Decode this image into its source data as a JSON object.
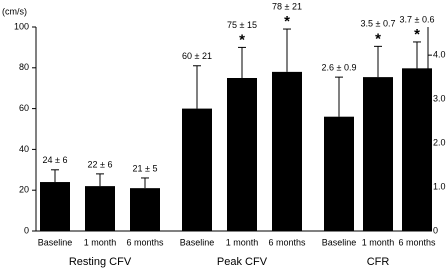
{
  "chart_data": {
    "type": "bar",
    "y_label": "(cm/s)",
    "color": "#000000",
    "ylim": [
      0,
      100
    ],
    "yticks": [
      0,
      20,
      40,
      60,
      80,
      100
    ],
    "y2lim": [
      0,
      4.64
    ],
    "y2ticks": [
      0,
      {
        "value": 1,
        "label": "1.0"
      },
      {
        "value": 2,
        "label": "2.0"
      },
      {
        "value": 3,
        "label": "3.0"
      },
      {
        "value": 4,
        "label": "4.0"
      }
    ],
    "groups": [
      {
        "name": "Resting CFV",
        "categories": [
          "Baseline",
          "1 month",
          "6 months"
        ],
        "values": [
          24,
          22,
          21
        ],
        "errors": [
          6,
          6,
          5
        ],
        "value_labels": [
          "24 ± 6",
          "22 ± 6",
          "21 ± 5"
        ]
      },
      {
        "name": "Peak CFV",
        "categories": [
          "Baseline",
          "1 month",
          "6 months"
        ],
        "values": [
          60,
          75,
          78
        ],
        "errors": [
          21,
          15,
          21
        ],
        "value_labels": [
          "60 ± 21",
          "75 ± 15",
          "78 ± 21"
        ],
        "annotations": [
          null,
          "*",
          "*"
        ]
      },
      {
        "name": "CFR",
        "axis": "y2",
        "categories": [
          "Baseline",
          "1 month",
          "6 months"
        ],
        "values": [
          2.6,
          3.5,
          3.7
        ],
        "errors": [
          0.9,
          0.7,
          0.6
        ],
        "value_labels": [
          "2.6 ± 0.9",
          "3.5 ± 0.7",
          "3.7 ± 0.6"
        ],
        "annotations": [
          null,
          "*",
          "*"
        ]
      }
    ]
  }
}
